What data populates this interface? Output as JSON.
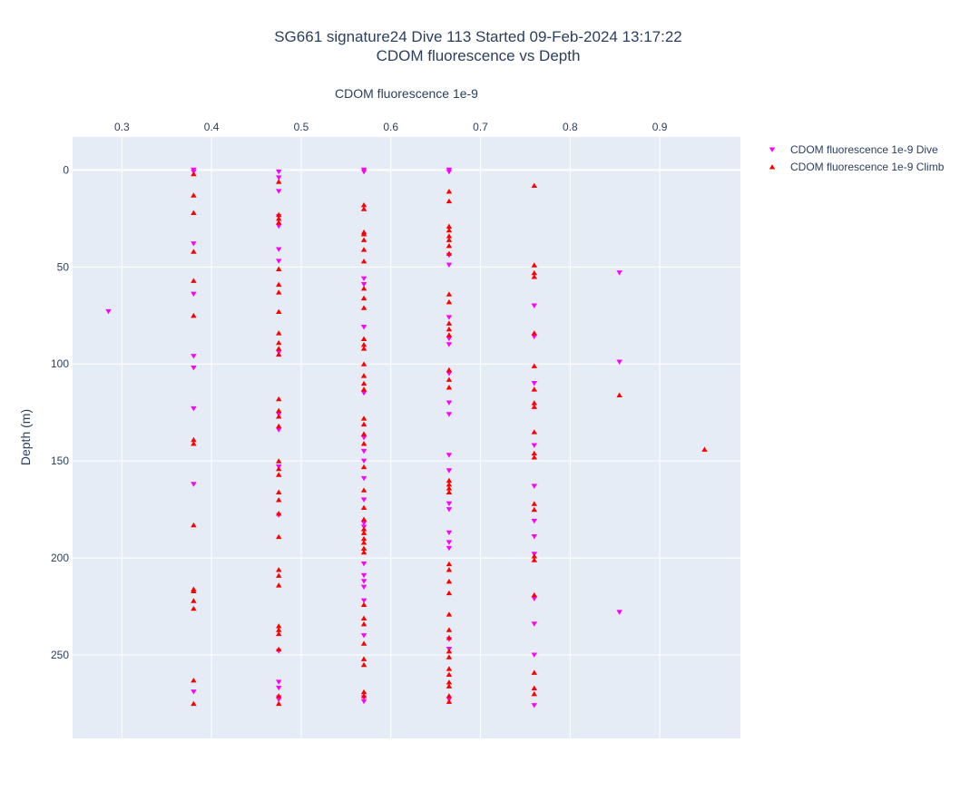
{
  "chart_data": {
    "type": "scatter",
    "title": "SG661 signature24 Dive 113 Started 09-Feb-2024 13:17:22",
    "subtitle": "CDOM fluorescence vs Depth",
    "xlabel": "CDOM fluorescence 1e-9",
    "ylabel": "Depth (m)",
    "x_axis_position": "top",
    "y_reversed": true,
    "xlim": [
      0.245,
      0.99
    ],
    "ylim": [
      -17,
      293
    ],
    "x_ticks": [
      0.3,
      0.4,
      0.5,
      0.6,
      0.7,
      0.8,
      0.9
    ],
    "x_tick_labels": [
      "0.3",
      "0.4",
      "0.5",
      "0.6",
      "0.7",
      "0.8",
      "0.9"
    ],
    "y_ticks": [
      0,
      50,
      100,
      150,
      200,
      250
    ],
    "y_tick_labels": [
      "0",
      "50",
      "100",
      "150",
      "200",
      "250"
    ],
    "grid": true,
    "legend_position": "top-right",
    "series": [
      {
        "name": "CDOM fluorescence 1e-9 Dive",
        "marker": "triangle-down",
        "color": "#ff00ff",
        "points": [
          [
            0.38,
            0
          ],
          [
            0.38,
            1
          ],
          [
            0.38,
            38
          ],
          [
            0.38,
            64
          ],
          [
            0.38,
            96
          ],
          [
            0.38,
            102
          ],
          [
            0.38,
            123
          ],
          [
            0.38,
            162
          ],
          [
            0.38,
            269
          ],
          [
            0.475,
            1
          ],
          [
            0.475,
            4
          ],
          [
            0.475,
            11
          ],
          [
            0.475,
            24
          ],
          [
            0.475,
            29
          ],
          [
            0.475,
            41
          ],
          [
            0.475,
            47
          ],
          [
            0.475,
            94
          ],
          [
            0.475,
            126
          ],
          [
            0.475,
            134
          ],
          [
            0.475,
            153
          ],
          [
            0.475,
            178
          ],
          [
            0.475,
            248
          ],
          [
            0.475,
            264
          ],
          [
            0.475,
            267
          ],
          [
            0.475,
            272
          ],
          [
            0.475,
            273
          ],
          [
            0.57,
            0
          ],
          [
            0.57,
            1
          ],
          [
            0.57,
            56
          ],
          [
            0.57,
            59
          ],
          [
            0.57,
            81
          ],
          [
            0.57,
            115
          ],
          [
            0.57,
            138
          ],
          [
            0.57,
            145
          ],
          [
            0.57,
            150
          ],
          [
            0.57,
            159
          ],
          [
            0.57,
            170
          ],
          [
            0.57,
            182
          ],
          [
            0.57,
            184
          ],
          [
            0.57,
            203
          ],
          [
            0.57,
            209
          ],
          [
            0.57,
            212
          ],
          [
            0.57,
            215
          ],
          [
            0.57,
            222
          ],
          [
            0.57,
            240
          ],
          [
            0.57,
            272
          ],
          [
            0.57,
            274
          ],
          [
            0.665,
            0
          ],
          [
            0.665,
            1
          ],
          [
            0.665,
            44
          ],
          [
            0.665,
            49
          ],
          [
            0.665,
            76
          ],
          [
            0.665,
            87
          ],
          [
            0.665,
            90
          ],
          [
            0.665,
            105
          ],
          [
            0.665,
            120
          ],
          [
            0.665,
            126
          ],
          [
            0.665,
            147
          ],
          [
            0.665,
            155
          ],
          [
            0.665,
            172
          ],
          [
            0.665,
            175
          ],
          [
            0.665,
            187
          ],
          [
            0.665,
            192
          ],
          [
            0.665,
            195
          ],
          [
            0.665,
            242
          ],
          [
            0.665,
            247
          ],
          [
            0.665,
            273
          ],
          [
            0.76,
            70
          ],
          [
            0.76,
            86
          ],
          [
            0.76,
            110
          ],
          [
            0.76,
            142
          ],
          [
            0.76,
            163
          ],
          [
            0.76,
            181
          ],
          [
            0.76,
            189
          ],
          [
            0.76,
            198
          ],
          [
            0.76,
            221
          ],
          [
            0.76,
            234
          ],
          [
            0.76,
            250
          ],
          [
            0.76,
            276
          ],
          [
            0.285,
            73
          ],
          [
            0.855,
            53
          ],
          [
            0.855,
            99
          ],
          [
            0.855,
            228
          ]
        ]
      },
      {
        "name": "CDOM fluorescence 1e-9 Climb",
        "marker": "triangle-up",
        "color": "#ff0000",
        "points": [
          [
            0.38,
            2
          ],
          [
            0.38,
            13
          ],
          [
            0.38,
            22
          ],
          [
            0.38,
            42
          ],
          [
            0.38,
            57
          ],
          [
            0.38,
            75
          ],
          [
            0.38,
            139
          ],
          [
            0.38,
            141
          ],
          [
            0.38,
            183
          ],
          [
            0.38,
            216
          ],
          [
            0.38,
            217
          ],
          [
            0.38,
            222
          ],
          [
            0.38,
            226
          ],
          [
            0.38,
            263
          ],
          [
            0.38,
            275
          ],
          [
            0.475,
            6
          ],
          [
            0.475,
            23
          ],
          [
            0.475,
            25
          ],
          [
            0.475,
            27
          ],
          [
            0.475,
            51
          ],
          [
            0.475,
            59
          ],
          [
            0.475,
            63
          ],
          [
            0.475,
            73
          ],
          [
            0.475,
            84
          ],
          [
            0.475,
            89
          ],
          [
            0.475,
            92
          ],
          [
            0.475,
            95
          ],
          [
            0.475,
            118
          ],
          [
            0.475,
            124
          ],
          [
            0.475,
            127
          ],
          [
            0.475,
            132
          ],
          [
            0.475,
            150
          ],
          [
            0.475,
            154
          ],
          [
            0.475,
            157
          ],
          [
            0.475,
            166
          ],
          [
            0.475,
            170
          ],
          [
            0.475,
            177
          ],
          [
            0.475,
            189
          ],
          [
            0.475,
            206
          ],
          [
            0.475,
            209
          ],
          [
            0.475,
            214
          ],
          [
            0.475,
            235
          ],
          [
            0.475,
            237
          ],
          [
            0.475,
            239
          ],
          [
            0.475,
            247
          ],
          [
            0.475,
            271
          ],
          [
            0.475,
            275
          ],
          [
            0.57,
            18
          ],
          [
            0.57,
            20
          ],
          [
            0.57,
            32
          ],
          [
            0.57,
            33
          ],
          [
            0.57,
            36
          ],
          [
            0.57,
            41
          ],
          [
            0.57,
            47
          ],
          [
            0.57,
            61
          ],
          [
            0.57,
            66
          ],
          [
            0.57,
            71
          ],
          [
            0.57,
            87
          ],
          [
            0.57,
            90
          ],
          [
            0.57,
            92
          ],
          [
            0.57,
            100
          ],
          [
            0.57,
            106
          ],
          [
            0.57,
            110
          ],
          [
            0.57,
            113
          ],
          [
            0.57,
            128
          ],
          [
            0.57,
            131
          ],
          [
            0.57,
            136
          ],
          [
            0.57,
            141
          ],
          [
            0.57,
            153
          ],
          [
            0.57,
            165
          ],
          [
            0.57,
            174
          ],
          [
            0.57,
            180
          ],
          [
            0.57,
            185
          ],
          [
            0.57,
            187
          ],
          [
            0.57,
            190
          ],
          [
            0.57,
            192
          ],
          [
            0.57,
            195
          ],
          [
            0.57,
            197
          ],
          [
            0.57,
            224
          ],
          [
            0.57,
            231
          ],
          [
            0.57,
            234
          ],
          [
            0.57,
            244
          ],
          [
            0.57,
            252
          ],
          [
            0.57,
            255
          ],
          [
            0.57,
            269
          ],
          [
            0.57,
            271
          ],
          [
            0.665,
            11
          ],
          [
            0.665,
            16
          ],
          [
            0.665,
            29
          ],
          [
            0.665,
            31
          ],
          [
            0.665,
            34
          ],
          [
            0.665,
            36
          ],
          [
            0.665,
            39
          ],
          [
            0.665,
            43
          ],
          [
            0.665,
            64
          ],
          [
            0.665,
            68
          ],
          [
            0.665,
            79
          ],
          [
            0.665,
            82
          ],
          [
            0.665,
            85
          ],
          [
            0.665,
            103
          ],
          [
            0.665,
            108
          ],
          [
            0.665,
            112
          ],
          [
            0.665,
            160
          ],
          [
            0.665,
            162
          ],
          [
            0.665,
            164
          ],
          [
            0.665,
            166
          ],
          [
            0.665,
            203
          ],
          [
            0.665,
            206
          ],
          [
            0.665,
            212
          ],
          [
            0.665,
            218
          ],
          [
            0.665,
            229
          ],
          [
            0.665,
            237
          ],
          [
            0.665,
            241
          ],
          [
            0.665,
            248
          ],
          [
            0.665,
            251
          ],
          [
            0.665,
            257
          ],
          [
            0.665,
            260
          ],
          [
            0.665,
            264
          ],
          [
            0.665,
            266
          ],
          [
            0.665,
            271
          ],
          [
            0.665,
            274
          ],
          [
            0.76,
            8
          ],
          [
            0.76,
            49
          ],
          [
            0.76,
            53
          ],
          [
            0.76,
            55
          ],
          [
            0.76,
            84
          ],
          [
            0.76,
            101
          ],
          [
            0.76,
            113
          ],
          [
            0.76,
            120
          ],
          [
            0.76,
            122
          ],
          [
            0.76,
            135
          ],
          [
            0.76,
            146
          ],
          [
            0.76,
            148
          ],
          [
            0.76,
            172
          ],
          [
            0.76,
            175
          ],
          [
            0.76,
            199
          ],
          [
            0.76,
            201
          ],
          [
            0.76,
            219
          ],
          [
            0.76,
            259
          ],
          [
            0.76,
            267
          ],
          [
            0.76,
            270
          ],
          [
            0.855,
            116
          ],
          [
            0.95,
            144
          ]
        ]
      }
    ]
  }
}
